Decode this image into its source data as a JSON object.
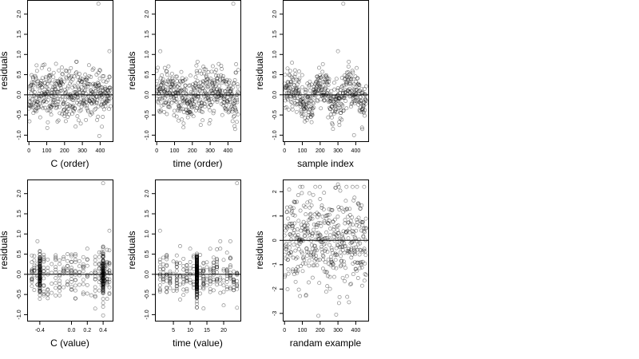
{
  "chart_data": [
    {
      "type": "scatter",
      "xlabel": "C (order)",
      "ylabel": "residuals",
      "xlim": [
        -10,
        470
      ],
      "ylim": [
        -11.5,
        23.5
      ],
      "xticks": [
        0,
        100,
        200,
        300,
        400
      ],
      "xtick_labels": [
        "0",
        "100",
        "200",
        "300",
        "400"
      ],
      "yticks": [
        -10,
        -5,
        0,
        5,
        10,
        15,
        20
      ],
      "ytick_labels": [
        "-1.0",
        "-0.5",
        "0.0",
        "0.5",
        "1.0",
        "1.5",
        "2.0"
      ],
      "hline": 0,
      "n": 460,
      "seed": 11,
      "pattern": "order",
      "outliers": [
        {
          "x": 390,
          "y": 22.6
        },
        {
          "x": 395,
          "y": -10.2
        },
        {
          "x": 452,
          "y": 10.8
        }
      ]
    },
    {
      "type": "scatter",
      "xlabel": "time (order)",
      "ylabel": "residuals",
      "xlim": [
        -10,
        470
      ],
      "ylim": [
        -11.5,
        23.5
      ],
      "xticks": [
        0,
        100,
        200,
        300,
        400
      ],
      "xtick_labels": [
        "0",
        "100",
        "200",
        "300",
        "400"
      ],
      "yticks": [
        -10,
        -5,
        0,
        5,
        10,
        15,
        20
      ],
      "ytick_labels": [
        "-1.0",
        "-0.5",
        "0.0",
        "0.5",
        "1.0",
        "1.5",
        "2.0"
      ],
      "hline": 0,
      "n": 460,
      "seed": 23,
      "pattern": "order",
      "outliers": [
        {
          "x": 430,
          "y": 22.6
        },
        {
          "x": 20,
          "y": 10.8
        },
        {
          "x": 440,
          "y": -8.5
        }
      ]
    },
    {
      "type": "scatter",
      "xlabel": "sample index",
      "ylabel": "residuals",
      "xlim": [
        -10,
        470
      ],
      "ylim": [
        -11.5,
        23.5
      ],
      "xticks": [
        0,
        100,
        200,
        300,
        400
      ],
      "xtick_labels": [
        "0",
        "100",
        "200",
        "300",
        "400"
      ],
      "yticks": [
        -10,
        -5,
        0,
        5,
        10,
        15,
        20
      ],
      "ytick_labels": [
        "-1.0",
        "-0.5",
        "0.0",
        "0.5",
        "1.0",
        "1.5",
        "2.0"
      ],
      "hline": 0,
      "n": 460,
      "seed": 37,
      "pattern": "wave",
      "outliers": [
        {
          "x": 330,
          "y": 22.6
        },
        {
          "x": 300,
          "y": 10.8
        },
        {
          "x": 390,
          "y": -10.0
        }
      ]
    },
    {
      "type": "scatter",
      "xlabel": "C (value)",
      "ylabel": "residuals",
      "xlim": [
        -0.56,
        0.52
      ],
      "ylim": [
        -11.5,
        23.5
      ],
      "xticks": [
        -0.4,
        0.0,
        0.2,
        0.4
      ],
      "xtick_labels": [
        "-0.4",
        "0.0",
        "0.2",
        "0.4"
      ],
      "yticks": [
        -10,
        -5,
        0,
        5,
        10,
        15,
        20
      ],
      "ytick_labels": [
        "-1.0",
        "-0.5",
        "0.0",
        "0.5",
        "1.0",
        "1.5",
        "2.0"
      ],
      "hline": 0,
      "n": 460,
      "seed": 53,
      "pattern": "discrete",
      "levels": [
        -0.5,
        -0.47,
        -0.43,
        -0.4,
        -0.35,
        -0.3,
        -0.25,
        -0.2,
        -0.15,
        -0.1,
        -0.05,
        0.0,
        0.05,
        0.1,
        0.15,
        0.2,
        0.25,
        0.3,
        0.35,
        0.38,
        0.4,
        0.42,
        0.45,
        0.48
      ],
      "heavy_levels": [
        -0.4,
        0.4
      ],
      "outliers": [
        {
          "x": 0.4,
          "y": 22.6
        },
        {
          "x": 0.4,
          "y": -10.2
        },
        {
          "x": 0.48,
          "y": 10.8
        }
      ]
    },
    {
      "type": "scatter",
      "xlabel": "time (value)",
      "ylabel": "residuals",
      "xlim": [
        -0.5,
        25
      ],
      "ylim": [
        -11.5,
        23.5
      ],
      "xticks": [
        5,
        10,
        15,
        20
      ],
      "xtick_labels": [
        "5",
        "10",
        "15",
        "20"
      ],
      "yticks": [
        -10,
        -5,
        0,
        5,
        10,
        15,
        20
      ],
      "ytick_labels": [
        "-1.0",
        "-0.5",
        "0.0",
        "0.5",
        "1.0",
        "1.5",
        "2.0"
      ],
      "hline": 0,
      "n": 460,
      "seed": 71,
      "pattern": "discrete",
      "levels": [
        1,
        2,
        3,
        4,
        5,
        6,
        7,
        8,
        9,
        10,
        11,
        12,
        13,
        14,
        15,
        16,
        17,
        18,
        19,
        20,
        21,
        22,
        23,
        24
      ],
      "heavy_levels": [
        12
      ],
      "outliers": [
        {
          "x": 24,
          "y": 22.6
        },
        {
          "x": 1,
          "y": 10.8
        },
        {
          "x": 24,
          "y": -8.3
        }
      ]
    },
    {
      "type": "scatter",
      "xlabel": "randam example",
      "ylabel": "residuals",
      "xlim": [
        -10,
        470
      ],
      "ylim": [
        -3.3,
        2.5
      ],
      "xticks": [
        0,
        100,
        200,
        300,
        400
      ],
      "xtick_labels": [
        "0",
        "100",
        "200",
        "300",
        "400"
      ],
      "yticks": [
        -3,
        -2,
        -1,
        0,
        1,
        2
      ],
      "ytick_labels": [
        "-3",
        "-2",
        "-1",
        "0",
        "1",
        "2"
      ],
      "hline": 0,
      "n": 460,
      "seed": 97,
      "pattern": "normal",
      "outliers": [
        {
          "x": 190,
          "y": -3.1
        },
        {
          "x": 290,
          "y": -3.05
        },
        {
          "x": 300,
          "y": 2.3
        }
      ]
    }
  ]
}
